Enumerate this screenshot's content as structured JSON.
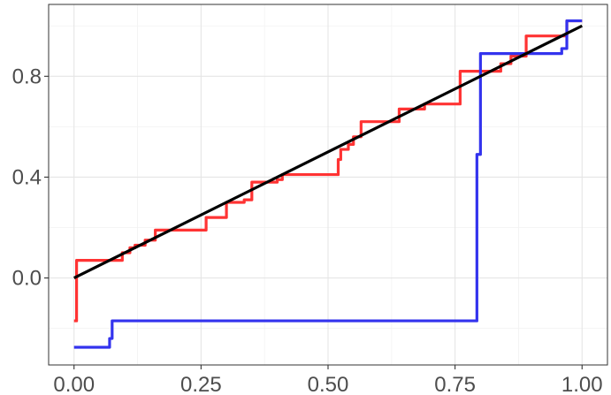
{
  "chart_data": {
    "type": "line",
    "title": "",
    "xlabel": "",
    "ylabel": "",
    "xlim": [
      -0.05,
      1.05
    ],
    "ylim": [
      -0.345,
      1.085
    ],
    "grid": true,
    "legend": "none",
    "x_ticks": [
      {
        "value": 0.0,
        "label": "0.00"
      },
      {
        "value": 0.25,
        "label": "0.25"
      },
      {
        "value": 0.5,
        "label": "0.50"
      },
      {
        "value": 0.75,
        "label": "0.75"
      },
      {
        "value": 1.0,
        "label": "1.00"
      }
    ],
    "y_ticks": [
      {
        "value": 0.0,
        "label": "0.0"
      },
      {
        "value": 0.4,
        "label": "0.4"
      },
      {
        "value": 0.8,
        "label": "0.8"
      }
    ],
    "series": [
      {
        "color": "#ff3333",
        "step": true,
        "x": [
          0.0,
          0.005,
          0.09,
          0.095,
          0.11,
          0.12,
          0.13,
          0.14,
          0.155,
          0.16,
          0.24,
          0.26,
          0.3,
          0.32,
          0.335,
          0.35,
          0.39,
          0.4,
          0.41,
          0.42,
          0.51,
          0.52,
          0.525,
          0.53,
          0.54,
          0.55,
          0.565,
          0.58,
          0.64,
          0.69,
          0.75,
          0.76,
          0.81,
          0.84,
          0.86,
          0.88,
          0.89,
          0.96,
          0.97,
          1.0
        ],
        "y": [
          -0.17,
          0.07,
          0.07,
          0.1,
          0.12,
          0.13,
          0.13,
          0.15,
          0.15,
          0.19,
          0.19,
          0.24,
          0.3,
          0.3,
          0.31,
          0.38,
          0.38,
          0.39,
          0.41,
          0.41,
          0.41,
          0.47,
          0.51,
          0.51,
          0.53,
          0.56,
          0.62,
          0.62,
          0.67,
          0.69,
          0.69,
          0.82,
          0.82,
          0.85,
          0.88,
          0.88,
          0.96,
          0.96,
          1.02,
          1.02
        ]
      },
      {
        "color": "#3333ee",
        "step": true,
        "x": [
          0.0,
          0.065,
          0.07,
          0.075,
          0.79,
          0.793,
          0.8,
          0.88,
          0.96,
          0.97,
          1.0
        ],
        "y": [
          -0.275,
          -0.275,
          -0.24,
          -0.17,
          -0.17,
          0.49,
          0.89,
          0.89,
          0.91,
          1.02,
          1.02
        ]
      },
      {
        "color": "#000000",
        "step": false,
        "x": [
          0.0,
          1.0
        ],
        "y": [
          0.0,
          1.0
        ]
      }
    ]
  }
}
